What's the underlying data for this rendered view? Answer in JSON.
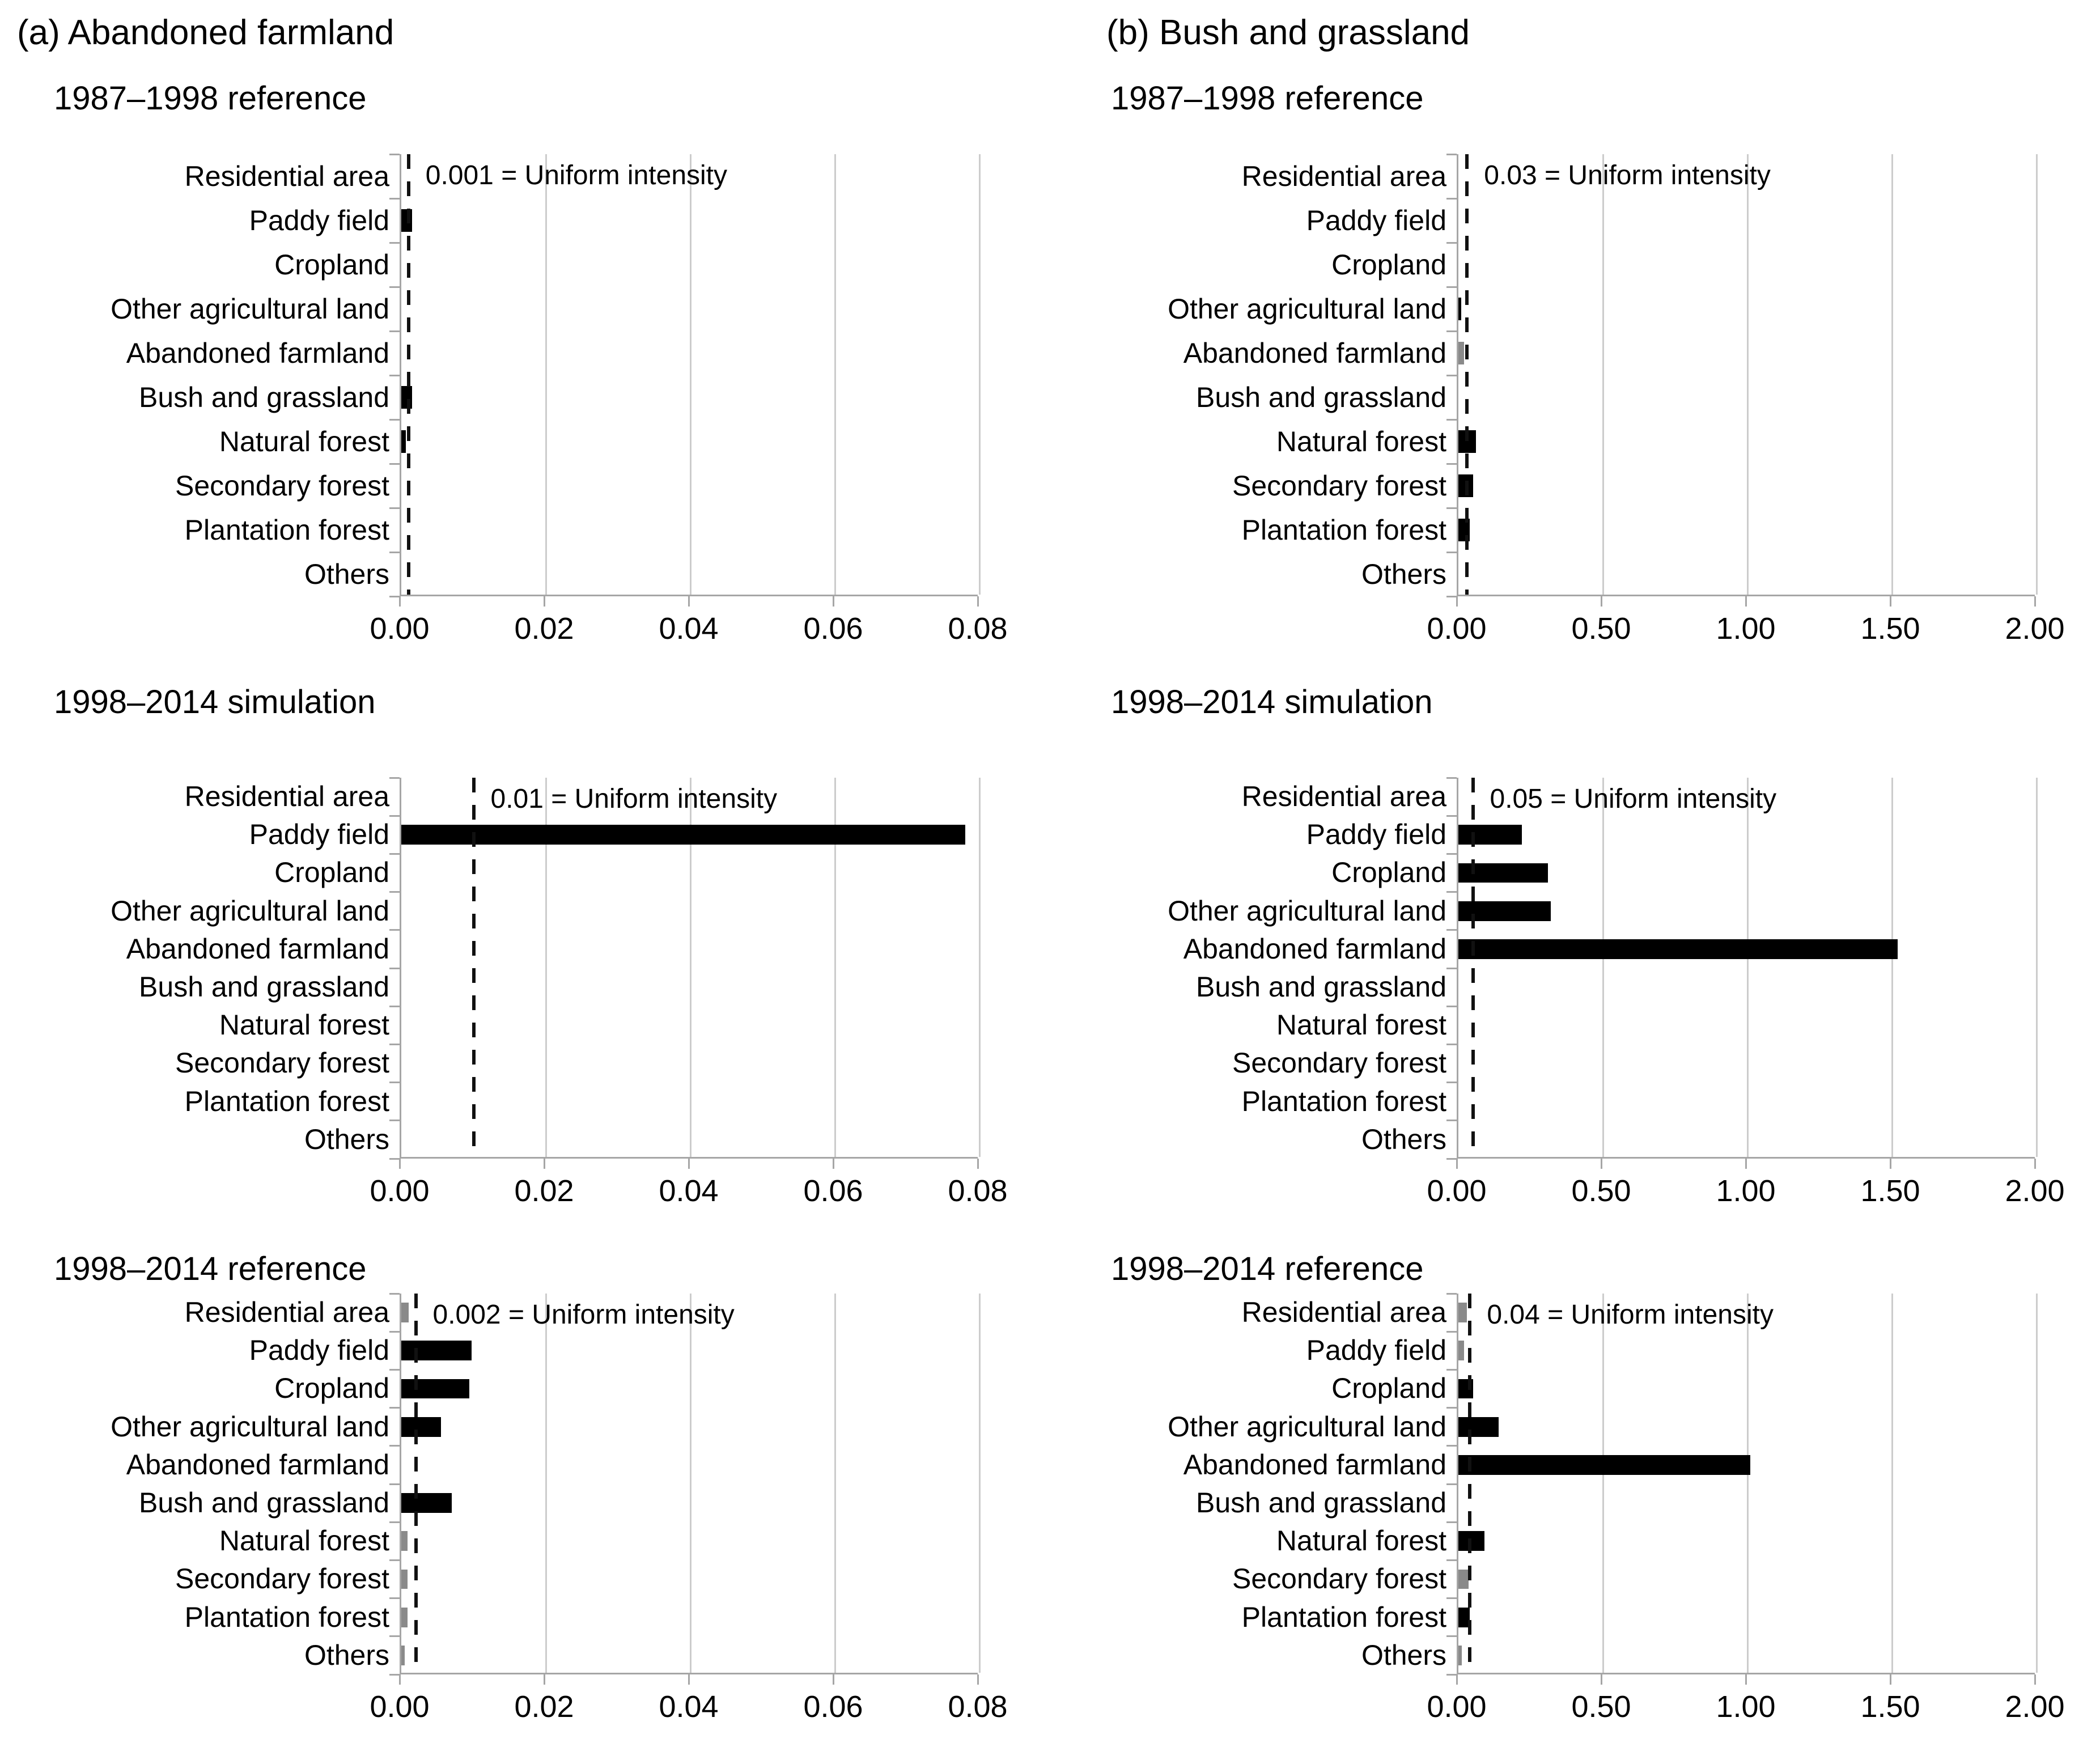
{
  "page": {
    "background": "#ffffff",
    "text_color": "#000000",
    "grid_color": "#cccccc",
    "axis_color": "#a6a6a6",
    "dash_line_color": "#111111",
    "bar_palette": {
      "black": "#000000",
      "gray": "#8a8a8a"
    }
  },
  "figure": {
    "column_titles": [
      "(a) Abandoned farmland",
      "(b) Bush and grassland"
    ],
    "categories": [
      "Residential area",
      "Paddy field",
      "Cropland",
      "Other agricultural land",
      "Abandoned farmland",
      "Bush and grassland",
      "Natural forest",
      "Secondary forest",
      "Plantation forest",
      "Others"
    ]
  },
  "chart_data": [
    {
      "type": "bar",
      "orientation": "horizontal",
      "group": "(a) Abandoned farmland",
      "title": "1987–1998 reference",
      "categories": [
        "Residential area",
        "Paddy field",
        "Cropland",
        "Other agricultural land",
        "Abandoned farmland",
        "Bush and grassland",
        "Natural forest",
        "Secondary forest",
        "Plantation forest",
        "Others"
      ],
      "values": [
        0,
        0.0015,
        0,
        0,
        0,
        0.0015,
        0.0006,
        0,
        0,
        0
      ],
      "bar_colors": [
        "black",
        "black",
        "black",
        "black",
        "black",
        "black",
        "black",
        "black",
        "black",
        "black"
      ],
      "uniform_intensity": 0.001,
      "annotation": "0.001 = Uniform intensity",
      "xlim": [
        0,
        0.08
      ],
      "xtick_values": [
        0,
        0.02,
        0.04,
        0.06,
        0.08
      ],
      "xtick_labels": [
        "0.00",
        "0.02",
        "0.04",
        "0.06",
        "0.08"
      ],
      "grid": true,
      "legend": "none"
    },
    {
      "type": "bar",
      "orientation": "horizontal",
      "group": "(a) Abandoned farmland",
      "title": "1998–2014 simulation",
      "categories": [
        "Residential area",
        "Paddy field",
        "Cropland",
        "Other agricultural land",
        "Abandoned farmland",
        "Bush and grassland",
        "Natural forest",
        "Secondary forest",
        "Plantation forest",
        "Others"
      ],
      "values": [
        0,
        0.078,
        0,
        0,
        0,
        0,
        0,
        0,
        0,
        0
      ],
      "bar_colors": [
        "black",
        "black",
        "black",
        "black",
        "black",
        "black",
        "black",
        "black",
        "black",
        "black"
      ],
      "uniform_intensity": 0.01,
      "annotation": "0.01 = Uniform intensity",
      "xlim": [
        0,
        0.08
      ],
      "xtick_values": [
        0,
        0.02,
        0.04,
        0.06,
        0.08
      ],
      "xtick_labels": [
        "0.00",
        "0.02",
        "0.04",
        "0.06",
        "0.08"
      ],
      "grid": true,
      "legend": "none"
    },
    {
      "type": "bar",
      "orientation": "horizontal",
      "group": "(a) Abandoned farmland",
      "title": "1998–2014 reference",
      "categories": [
        "Residential area",
        "Paddy field",
        "Cropland",
        "Other agricultural land",
        "Abandoned farmland",
        "Bush and grassland",
        "Natural forest",
        "Secondary forest",
        "Plantation forest",
        "Others"
      ],
      "values": [
        0.001,
        0.0097,
        0.0094,
        0.0055,
        0,
        0.007,
        0.0009,
        0.0009,
        0.0009,
        0.0005
      ],
      "bar_colors": [
        "gray",
        "black",
        "black",
        "black",
        "black",
        "black",
        "gray",
        "gray",
        "gray",
        "gray"
      ],
      "uniform_intensity": 0.002,
      "annotation": "0.002 = Uniform intensity",
      "xlim": [
        0,
        0.08
      ],
      "xtick_values": [
        0,
        0.02,
        0.04,
        0.06,
        0.08
      ],
      "xtick_labels": [
        "0.00",
        "0.02",
        "0.04",
        "0.06",
        "0.08"
      ],
      "grid": true,
      "legend": "none"
    },
    {
      "type": "bar",
      "orientation": "horizontal",
      "group": "(b) Bush and grassland",
      "title": "1987–1998 reference",
      "categories": [
        "Residential area",
        "Paddy field",
        "Cropland",
        "Other agricultural land",
        "Abandoned farmland",
        "Bush and grassland",
        "Natural forest",
        "Secondary forest",
        "Plantation forest",
        "Others"
      ],
      "values": [
        0,
        0,
        0,
        0.01,
        0.02,
        0,
        0.06,
        0.05,
        0.04,
        0
      ],
      "bar_colors": [
        "black",
        "black",
        "black",
        "black",
        "gray",
        "black",
        "black",
        "black",
        "black",
        "black"
      ],
      "uniform_intensity": 0.03,
      "annotation": "0.03 = Uniform intensity",
      "xlim": [
        0,
        2.0
      ],
      "xtick_values": [
        0,
        0.5,
        1.0,
        1.5,
        2.0
      ],
      "xtick_labels": [
        "0.00",
        "0.50",
        "1.00",
        "1.50",
        "2.00"
      ],
      "grid": true,
      "legend": "none"
    },
    {
      "type": "bar",
      "orientation": "horizontal",
      "group": "(b) Bush and grassland",
      "title": "1998–2014 simulation",
      "categories": [
        "Residential area",
        "Paddy field",
        "Cropland",
        "Other agricultural land",
        "Abandoned farmland",
        "Bush and grassland",
        "Natural forest",
        "Secondary forest",
        "Plantation forest",
        "Others"
      ],
      "values": [
        0,
        0.22,
        0.31,
        0.32,
        1.52,
        0,
        0,
        0,
        0,
        0
      ],
      "bar_colors": [
        "black",
        "black",
        "black",
        "black",
        "black",
        "black",
        "black",
        "black",
        "black",
        "black"
      ],
      "uniform_intensity": 0.05,
      "annotation": "0.05 = Uniform intensity",
      "xlim": [
        0,
        2.0
      ],
      "xtick_values": [
        0,
        0.5,
        1.0,
        1.5,
        2.0
      ],
      "xtick_labels": [
        "0.00",
        "0.50",
        "1.00",
        "1.50",
        "2.00"
      ],
      "grid": true,
      "legend": "none"
    },
    {
      "type": "bar",
      "orientation": "horizontal",
      "group": "(b) Bush and grassland",
      "title": "1998–2014 reference",
      "categories": [
        "Residential area",
        "Paddy field",
        "Cropland",
        "Other agricultural land",
        "Abandoned farmland",
        "Bush and grassland",
        "Natural forest",
        "Secondary forest",
        "Plantation forest",
        "Others"
      ],
      "values": [
        0.03,
        0.02,
        0.05,
        0.14,
        1.01,
        0,
        0.09,
        0.035,
        0.04,
        0.012
      ],
      "bar_colors": [
        "gray",
        "gray",
        "black",
        "black",
        "black",
        "black",
        "black",
        "gray",
        "black",
        "gray"
      ],
      "uniform_intensity": 0.04,
      "annotation": "0.04 = Uniform intensity",
      "xlim": [
        0,
        2.0
      ],
      "xtick_values": [
        0,
        0.5,
        1.0,
        1.5,
        2.0
      ],
      "xtick_labels": [
        "0.00",
        "0.50",
        "1.00",
        "1.50",
        "2.00"
      ],
      "grid": true,
      "legend": "none"
    }
  ]
}
